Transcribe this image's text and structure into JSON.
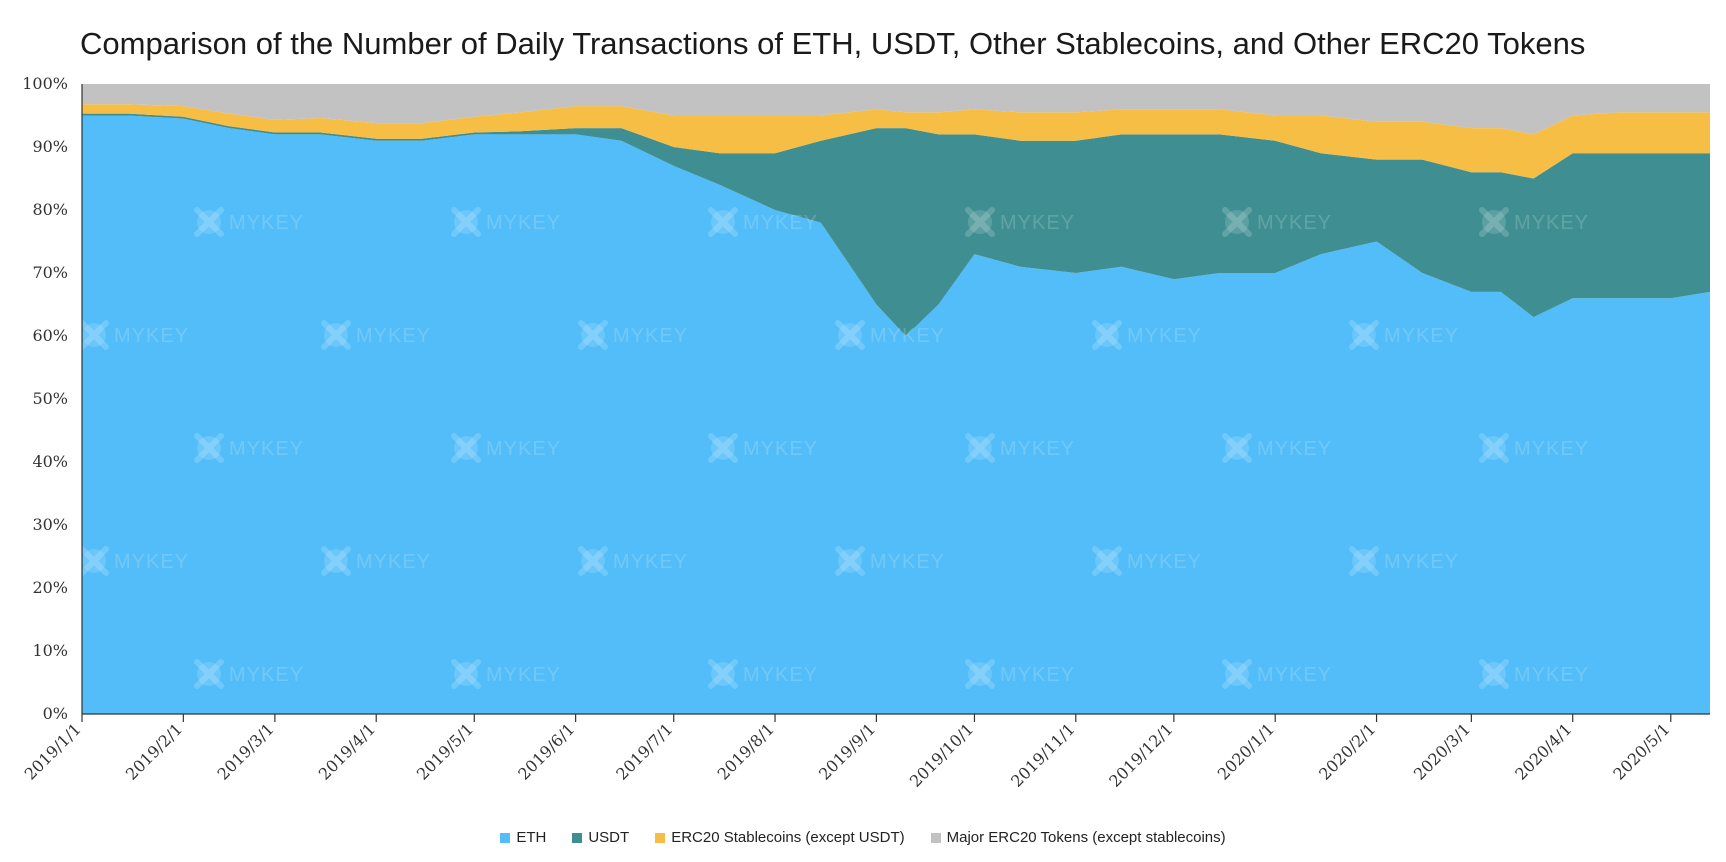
{
  "chart_data": {
    "type": "area",
    "stacked": true,
    "normalized": true,
    "title": "Comparison of the Number of Daily Transactions of ETH, USDT, Other Stablecoins, and Other ERC20 Tokens",
    "xlabel": "",
    "ylabel": "",
    "ylim": [
      0,
      100
    ],
    "y_ticks": [
      "0%",
      "10%",
      "20%",
      "30%",
      "40%",
      "50%",
      "60%",
      "70%",
      "80%",
      "90%",
      "100%"
    ],
    "x_ticks": [
      "2019/1/1",
      "2019/2/1",
      "2019/3/1",
      "2019/4/1",
      "2019/5/1",
      "2019/6/1",
      "2019/7/1",
      "2019/8/1",
      "2019/9/1",
      "2019/10/1",
      "2019/11/1",
      "2019/12/1",
      "2020/1/1",
      "2020/2/1",
      "2020/3/1",
      "2020/4/1",
      "2020/5/1"
    ],
    "x_range": [
      "2019/1/1",
      "2020/5/13"
    ],
    "grid": false,
    "legend_position": "bottom",
    "x": [
      "2019/1/1",
      "2019/1/15",
      "2019/2/1",
      "2019/2/15",
      "2019/3/1",
      "2019/3/15",
      "2019/4/1",
      "2019/4/15",
      "2019/5/1",
      "2019/5/15",
      "2019/6/1",
      "2019/6/15",
      "2019/7/1",
      "2019/7/15",
      "2019/8/1",
      "2019/8/15",
      "2019/9/1",
      "2019/9/10",
      "2019/9/20",
      "2019/10/1",
      "2019/10/15",
      "2019/11/1",
      "2019/11/15",
      "2019/12/1",
      "2019/12/15",
      "2020/1/1",
      "2020/1/15",
      "2020/2/1",
      "2020/2/15",
      "2020/3/1",
      "2020/3/10",
      "2020/3/20",
      "2020/4/1",
      "2020/4/15",
      "2020/5/1",
      "2020/5/13"
    ],
    "series": [
      {
        "name": "ETH",
        "color": "#52bdf8",
        "values": [
          95,
          95,
          94.5,
          93,
          92,
          92,
          91,
          91,
          92,
          92,
          92,
          91,
          87,
          84,
          80,
          78,
          65,
          60,
          65,
          73,
          71,
          70,
          71,
          69,
          70,
          70,
          73,
          75,
          70,
          67,
          67,
          63,
          66,
          66,
          66,
          67
        ]
      },
      {
        "name": "USDT",
        "color": "#3f8f92",
        "values": [
          0.3,
          0.3,
          0.3,
          0.3,
          0.3,
          0.3,
          0.3,
          0.3,
          0.3,
          0.5,
          1,
          2,
          3,
          5,
          9,
          13,
          28,
          33,
          27,
          19,
          20,
          21,
          21,
          23,
          22,
          21,
          16,
          13,
          18,
          19,
          19,
          22,
          23,
          23,
          23,
          22
        ]
      },
      {
        "name": "ERC20 Stablecoins (except USDT)",
        "color": "#f7be45",
        "values": [
          1.5,
          1.5,
          1.7,
          2,
          2,
          2.3,
          2.5,
          2.5,
          2.5,
          3,
          3.5,
          3.5,
          5,
          6,
          6,
          4,
          3,
          2.5,
          3.5,
          4,
          4.5,
          4.5,
          4,
          4,
          4,
          4,
          6,
          6,
          6,
          7,
          7,
          7,
          6,
          6.5,
          6.5,
          6.5
        ]
      },
      {
        "name": "Major ERC20 Tokens (except stablecoins)",
        "color": "#c2c2c2",
        "values": [
          3.2,
          3.2,
          3.5,
          4.7,
          5.7,
          5.4,
          6.2,
          6.2,
          5.2,
          4.5,
          3.5,
          3.5,
          5,
          5,
          5,
          5,
          4,
          4.5,
          4.5,
          4,
          4.5,
          4.5,
          4,
          4,
          4,
          5,
          5,
          6,
          6,
          7,
          7,
          8,
          5,
          4.5,
          4.5,
          4.5
        ]
      }
    ]
  },
  "watermark": {
    "text": "MYKEY"
  }
}
